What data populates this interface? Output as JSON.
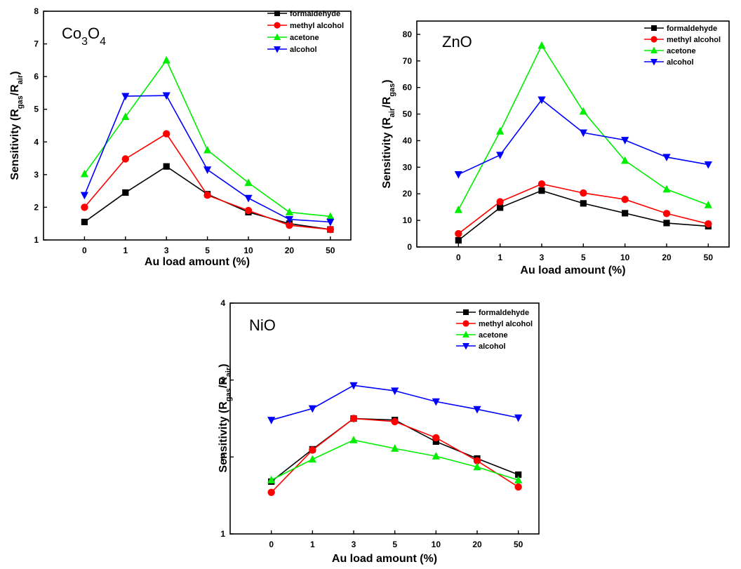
{
  "chart_data": [
    {
      "type": "line",
      "panel": "Co3O4",
      "sample_label": {
        "base": "Co",
        "sub1": "3",
        "mid": "O",
        "sub2": "4"
      },
      "xlabel": "Au load amount (%)",
      "ylabel": {
        "base": "Sensitivity (R",
        "sub1": "gas",
        "mid": "/R",
        "sub2": "air",
        "end": ")"
      },
      "categories": [
        "0",
        "1",
        "3",
        "5",
        "10",
        "20",
        "50"
      ],
      "ylim": [
        1,
        8
      ],
      "yticks": [
        "1",
        "2",
        "3",
        "4",
        "5",
        "6",
        "7",
        "8"
      ],
      "legend_position": "top-right",
      "series": [
        {
          "name": "formaldehyde",
          "color": "#000000",
          "marker": "square",
          "values": [
            1.55,
            2.45,
            3.25,
            2.4,
            1.85,
            1.5,
            1.32
          ]
        },
        {
          "name": "methyl alcohol",
          "color": "#ff0000",
          "marker": "circle",
          "values": [
            2.0,
            3.48,
            4.25,
            2.37,
            1.9,
            1.45,
            1.32
          ]
        },
        {
          "name": "acetone",
          "color": "#00ee00",
          "marker": "triangle-up",
          "values": [
            3.02,
            4.77,
            6.5,
            3.75,
            2.75,
            1.85,
            1.72
          ]
        },
        {
          "name": "alcohol",
          "color": "#0000ff",
          "marker": "triangle-down",
          "values": [
            2.37,
            5.4,
            5.42,
            3.15,
            2.28,
            1.63,
            1.55
          ]
        }
      ]
    },
    {
      "type": "line",
      "panel": "ZnO",
      "sample_label": {
        "base": "ZnO"
      },
      "xlabel": "Au load amount (%)",
      "ylabel": {
        "base": "Sensitivity (R",
        "sub1": "air",
        "mid": "/R",
        "sub2": "gas",
        "end": ")"
      },
      "categories": [
        "0",
        "1",
        "3",
        "5",
        "10",
        "20",
        "50"
      ],
      "ylim": [
        0,
        85
      ],
      "yticks": [
        "0",
        "10",
        "20",
        "30",
        "40",
        "50",
        "60",
        "70",
        "80"
      ],
      "legend_position": "top-right",
      "series": [
        {
          "name": "formaldehyde",
          "color": "#000000",
          "marker": "square",
          "values": [
            2.5,
            14.8,
            21.2,
            16.4,
            12.7,
            9.0,
            7.8
          ]
        },
        {
          "name": "methyl alcohol",
          "color": "#ff0000",
          "marker": "circle",
          "values": [
            5.0,
            17.0,
            23.7,
            20.3,
            17.9,
            12.6,
            8.7
          ]
        },
        {
          "name": "acetone",
          "color": "#00ee00",
          "marker": "triangle-up",
          "values": [
            14.0,
            43.5,
            75.8,
            51.0,
            32.5,
            21.7,
            15.8
          ]
        },
        {
          "name": "alcohol",
          "color": "#0000ff",
          "marker": "triangle-down",
          "values": [
            27.3,
            34.6,
            55.4,
            43.0,
            40.2,
            33.8,
            31.0
          ]
        }
      ]
    },
    {
      "type": "line",
      "panel": "NiO",
      "sample_label": {
        "base": "NiO"
      },
      "xlabel": "Au load amount (%)",
      "ylabel": {
        "base": "Sensitivity (R",
        "sub1": "gas",
        "mid": "/R",
        "sub2": "air",
        "end": ")"
      },
      "categories": [
        "0",
        "1",
        "3",
        "5",
        "10",
        "20",
        "50"
      ],
      "ylim": [
        1,
        4
      ],
      "yticks": [
        "1",
        "2",
        "3",
        "4"
      ],
      "legend_position": "top-right",
      "series": [
        {
          "name": "formaldehyde",
          "color": "#000000",
          "marker": "square",
          "values": [
            1.68,
            2.1,
            2.5,
            2.48,
            2.2,
            1.98,
            1.77
          ]
        },
        {
          "name": "methyl alcohol",
          "color": "#ff0000",
          "marker": "circle",
          "values": [
            1.54,
            2.09,
            2.5,
            2.46,
            2.25,
            1.95,
            1.61
          ]
        },
        {
          "name": "acetone",
          "color": "#00ee00",
          "marker": "triangle-up",
          "values": [
            1.7,
            1.97,
            2.22,
            2.11,
            2.01,
            1.87,
            1.7
          ]
        },
        {
          "name": "alcohol",
          "color": "#0000ff",
          "marker": "triangle-down",
          "values": [
            2.48,
            2.63,
            2.93,
            2.86,
            2.72,
            2.62,
            2.51
          ]
        }
      ]
    }
  ]
}
